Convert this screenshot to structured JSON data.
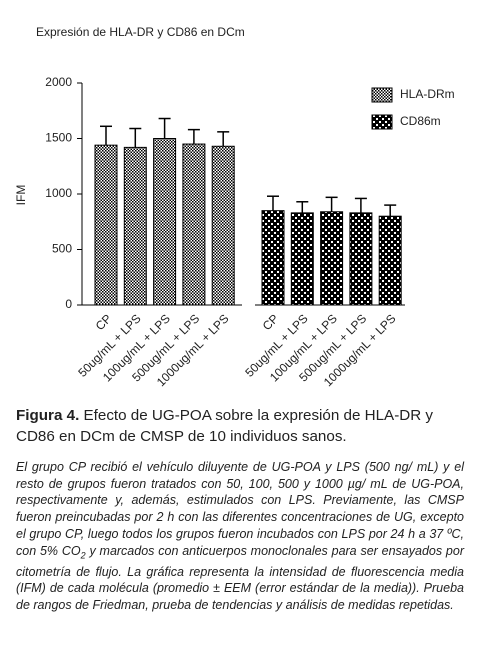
{
  "chart_data": {
    "type": "bar",
    "title": "Expresión de HLA-DR y CD86 en DCm",
    "y_label": "IFM",
    "categories": [
      "CP",
      "50ug/mL + LPS",
      "100ug/mL + LPS",
      "500ug/mL + LPS",
      "1000ug/mL + LPS"
    ],
    "series": [
      {
        "name": "HLA-DRm",
        "color": "#000000",
        "values": [
          1440,
          1420,
          1500,
          1450,
          1430
        ],
        "errors": [
          170,
          170,
          180,
          130,
          130
        ]
      },
      {
        "name": "CD86m",
        "color": "#000000",
        "values": [
          850,
          830,
          840,
          830,
          800
        ],
        "errors": [
          130,
          100,
          130,
          130,
          100
        ]
      }
    ],
    "ylim": [
      0,
      2000
    ],
    "yticks": [
      0,
      500,
      1000,
      1500,
      2000
    ],
    "grid": false,
    "legend": "top-right"
  },
  "caption": {
    "label": "Figura 4.",
    "title": "Efecto de UG-POA sobre la expresión de HLA-DR y CD86 en DCm de CMSP de 10 individuos sanos.",
    "body_start": "El grupo CP recibió el vehículo diluyente de UG-POA y LPS (500 ng/ mL) y el resto de grupos fueron tratados con 50, 100, 500 y 1000 µg/ mL de UG-POA, respectivamente y, además, estimulados con LPS. Previamente, las CMSP fueron preincubadas por 2 h con las diferentes concentraciones de UG, excepto el grupo CP, luego todos los grupos fueron incubados con LPS por 24 h a 37 ºC, con 5% CO",
    "body_sub": "2",
    "body_end": " y marcados con anticuerpos monoclonales para ser ensayados por citometría de flujo. La gráfica representa la intensidad de fluorescencia media (IFM) de cada molécula (promedio ± EEM (error estándar de la media)). Prueba de rangos de Friedman, prueba de tendencias y análisis de medidas repetidas."
  }
}
